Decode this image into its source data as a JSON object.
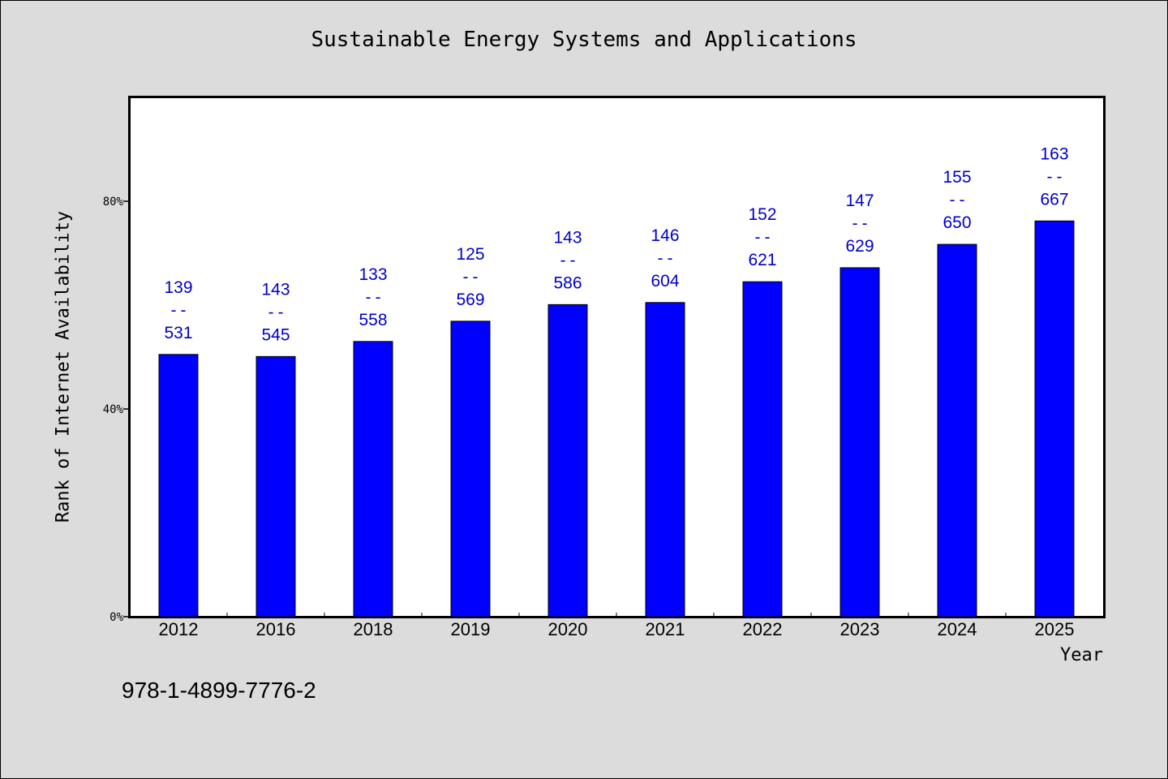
{
  "title": "Sustainable Energy Systems and Applications",
  "isbn": "978-1-4899-7776-2",
  "colors": {
    "bar": "#0000ff",
    "label": "#0000cc",
    "background": "#dcdcdc",
    "plot_bg": "#ffffff"
  },
  "chart_data": {
    "type": "bar",
    "title": "Sustainable Energy Systems and Applications",
    "xlabel": "Year",
    "ylabel": "Rank of Internet Availability",
    "categories": [
      "2012",
      "2016",
      "2018",
      "2019",
      "2020",
      "2021",
      "2022",
      "2023",
      "2024",
      "2025"
    ],
    "values": [
      0.505,
      0.501,
      0.53,
      0.569,
      0.601,
      0.605,
      0.645,
      0.672,
      0.717,
      0.762
    ],
    "data_labels": [
      [
        "139",
        "--",
        "531"
      ],
      [
        "143",
        "--",
        "545"
      ],
      [
        "133",
        "--",
        "558"
      ],
      [
        "125",
        "--",
        "569"
      ],
      [
        "143",
        "--",
        "586"
      ],
      [
        "146",
        "--",
        "604"
      ],
      [
        "152",
        "--",
        "621"
      ],
      [
        "147",
        "--",
        "629"
      ],
      [
        "155",
        "--",
        "650"
      ],
      [
        "163",
        "--",
        "667"
      ]
    ],
    "yticks": [
      0,
      0.4,
      0.8
    ],
    "ytick_labels": [
      "0%",
      "40%",
      "80%"
    ],
    "ylim": [
      0,
      1.0
    ],
    "grid": false,
    "legend": "none"
  }
}
